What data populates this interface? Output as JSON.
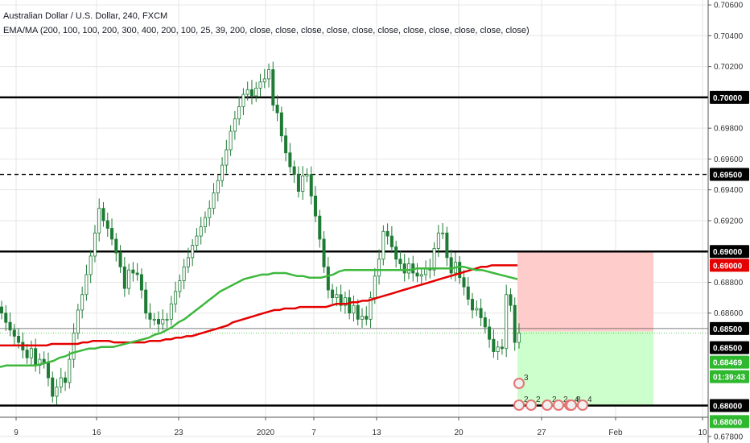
{
  "header": {
    "title": "Australian Dollar / U.S. Dollar, 240, FXCM",
    "indicator": "EMA/MA (200, 100, 100, 200, 300, 400, 200, 100, 25, 39, 200, close, close, close, close, close, close, close, close, close, close, close)"
  },
  "colors": {
    "up": "#26a69a",
    "down": "#ef5350",
    "candle": "#1e7b34",
    "ema_red": "#e50000",
    "ema_green": "#3db83d",
    "stop_zone": "#ffcccc",
    "target_zone": "#ccffcc",
    "grid": "#e6e6e6"
  },
  "price_axis": {
    "labels": [
      "0.70600",
      "0.70400",
      "0.70200",
      "0.69800",
      "0.69600",
      "0.69400",
      "0.69200",
      "0.68800",
      "0.68600",
      "0.67800"
    ],
    "min": 0.67757,
    "max": 0.70632
  },
  "time_axis": {
    "labels": [
      "9",
      "16",
      "23",
      "2020",
      "7",
      "13",
      "20",
      "27",
      "Feb",
      "10"
    ]
  },
  "levels": [
    {
      "price": 0.7,
      "label": "0.70000",
      "style": "solid"
    },
    {
      "price": 0.695,
      "label": "0.69500",
      "style": "dashed"
    },
    {
      "price": 0.69,
      "label": "0.69000",
      "style": "solid"
    },
    {
      "price": 0.685,
      "label": "0.68500",
      "style": "thin"
    },
    {
      "price": 0.68,
      "label": "0.68000",
      "style": "solid"
    }
  ],
  "price_tags": [
    {
      "price": 0.7,
      "label": "0.70000",
      "bg": "#000000",
      "fg": "#ffffff"
    },
    {
      "price": 0.695,
      "label": "0.69500",
      "bg": "#000000",
      "fg": "#ffffff"
    },
    {
      "price": 0.69,
      "label": "0.69000",
      "bg": "#000000",
      "fg": "#ffffff"
    },
    {
      "price": 0.6891,
      "label": "0.69000",
      "bg": "#e50000",
      "fg": "#ffffff"
    },
    {
      "price": 0.685,
      "label": "0.68500",
      "bg": "#000000",
      "fg": "#ffffff"
    },
    {
      "price": 0.6847,
      "label": "0.68500",
      "bg": "#000000",
      "fg": "#ffffff"
    },
    {
      "price": 0.6847,
      "label": "0.68469",
      "bg": "#2eb82e",
      "fg": "#ffffff"
    },
    {
      "price": 0.6847,
      "label": "01:39:43",
      "bg": "#2eb82e",
      "fg": "#ffffff"
    },
    {
      "price": 0.68,
      "label": "0.68000",
      "bg": "#000000",
      "fg": "#ffffff"
    },
    {
      "price": 0.6799,
      "label": "0.68000",
      "bg": "#2eb82e",
      "fg": "#ffffff"
    }
  ],
  "position": {
    "entry": 0.6848,
    "stop": 0.69,
    "target": 0.68
  },
  "event_badges": [
    "3",
    "2",
    "2",
    "2",
    "2",
    "4",
    "8",
    "4"
  ],
  "chart_data": {
    "type": "candlestick",
    "closes": [
      0.686,
      0.6854,
      0.6849,
      0.6845,
      0.6841,
      0.6836,
      0.6831,
      0.6837,
      0.6826,
      0.683,
      0.6828,
      0.6818,
      0.6806,
      0.6812,
      0.6818,
      0.6815,
      0.683,
      0.6847,
      0.6862,
      0.6872,
      0.6885,
      0.6897,
      0.6912,
      0.6928,
      0.692,
      0.6915,
      0.6908,
      0.6899,
      0.689,
      0.6876,
      0.6888,
      0.6886,
      0.6885,
      0.6875,
      0.686,
      0.6856,
      0.6856,
      0.6853,
      0.6856,
      0.6856,
      0.6866,
      0.6874,
      0.6881,
      0.689,
      0.6896,
      0.6904,
      0.691,
      0.6916,
      0.6922,
      0.6928,
      0.6938,
      0.6946,
      0.6956,
      0.6966,
      0.6978,
      0.6986,
      0.6994,
      0.7002,
      0.7005,
      0.7001,
      0.7006,
      0.701,
      0.7012,
      0.7018,
      0.6995,
      0.699,
      0.6975,
      0.6964,
      0.6955,
      0.695,
      0.6939,
      0.6949,
      0.695,
      0.6936,
      0.6923,
      0.6908,
      0.689,
      0.6875,
      0.687,
      0.6872,
      0.6865,
      0.687,
      0.686,
      0.6865,
      0.6856,
      0.6858,
      0.6856,
      0.687,
      0.6884,
      0.6895,
      0.6913,
      0.691,
      0.6903,
      0.6895,
      0.6892,
      0.6886,
      0.6892,
      0.6886,
      0.6884,
      0.6885,
      0.6889,
      0.6888,
      0.6902,
      0.6912,
      0.6912,
      0.6896,
      0.6886,
      0.6893,
      0.6883,
      0.6877,
      0.6869,
      0.6862,
      0.6863,
      0.6857,
      0.6851,
      0.6843,
      0.6835,
      0.6838,
      0.6837,
      0.6872,
      0.6865,
      0.6841,
      0.6847
    ],
    "ema_red": [
      0.6839,
      0.6839,
      0.6839,
      0.6839,
      0.6839,
      0.6839,
      0.6839,
      0.6839,
      0.6839,
      0.6839,
      0.684,
      0.684,
      0.684,
      0.684,
      0.684,
      0.684,
      0.6841,
      0.6841,
      0.6842,
      0.6842,
      0.6842,
      0.6842,
      0.6841,
      0.6841,
      0.6841,
      0.6841,
      0.6841,
      0.6841,
      0.6841,
      0.6842,
      0.6842,
      0.6842,
      0.6843,
      0.6843,
      0.6844,
      0.6844,
      0.6845,
      0.6845,
      0.6846,
      0.6847,
      0.6848,
      0.6849,
      0.685,
      0.6851,
      0.6852,
      0.6854,
      0.6855,
      0.6856,
      0.6857,
      0.6858,
      0.6859,
      0.686,
      0.6861,
      0.6862,
      0.6862,
      0.6863,
      0.6863,
      0.6863,
      0.6864,
      0.6864,
      0.6864,
      0.6864,
      0.6864,
      0.6864,
      0.6865,
      0.6866,
      0.6866,
      0.6866,
      0.6867,
      0.6867,
      0.6868,
      0.6868,
      0.6869,
      0.687,
      0.6871,
      0.6872,
      0.6873,
      0.6874,
      0.6875,
      0.6876,
      0.6877,
      0.6878,
      0.6879,
      0.688,
      0.6881,
      0.6882,
      0.6883,
      0.6884,
      0.6885,
      0.6886,
      0.6887,
      0.6888,
      0.6889,
      0.689,
      0.689,
      0.6891,
      0.6891,
      0.6891,
      0.6891,
      0.6891,
      0.6891
    ],
    "ema_green": [
      0.6825,
      0.6826,
      0.6826,
      0.6826,
      0.6826,
      0.6826,
      0.6826,
      0.6827,
      0.6828,
      0.6829,
      0.6831,
      0.6832,
      0.6834,
      0.6835,
      0.6836,
      0.6837,
      0.6837,
      0.6838,
      0.6838,
      0.6838,
      0.6839,
      0.684,
      0.6841,
      0.6842,
      0.6843,
      0.6844,
      0.6846,
      0.6847,
      0.6849,
      0.6851,
      0.6854,
      0.6856,
      0.6859,
      0.6862,
      0.6865,
      0.6868,
      0.6871,
      0.6874,
      0.6876,
      0.6878,
      0.688,
      0.6882,
      0.6883,
      0.6884,
      0.6885,
      0.6885,
      0.6886,
      0.6886,
      0.6886,
      0.6885,
      0.6884,
      0.6884,
      0.6883,
      0.6883,
      0.6883,
      0.6884,
      0.6885,
      0.6887,
      0.6888,
      0.6888,
      0.6888,
      0.6888,
      0.6888,
      0.6888,
      0.6888,
      0.6888,
      0.6888,
      0.6888,
      0.6888,
      0.6888,
      0.6889,
      0.6889,
      0.6889,
      0.6889,
      0.6889,
      0.6889,
      0.6889,
      0.689,
      0.689,
      0.6889,
      0.6888,
      0.6888,
      0.6887,
      0.6886,
      0.6885,
      0.6884,
      0.6883,
      0.6882
    ]
  }
}
